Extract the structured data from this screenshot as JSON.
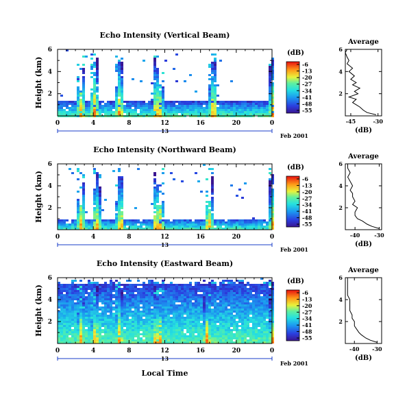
{
  "common": {
    "ylabel": "Height (km)",
    "time_ticks": [
      "0",
      "4",
      "8",
      "12",
      "16",
      "20",
      "0"
    ],
    "date_tick": "13",
    "date_label": "Feb 2001",
    "xlabel": "Local Time",
    "colorbar_unit": "(dB)",
    "colorbar_ticks": [
      "-6",
      "-13",
      "-20",
      "-27",
      "-34",
      "-41",
      "-48",
      "-55"
    ],
    "avg_title": "Average",
    "avg_xlabel": "(dB)"
  },
  "chart_data": [
    {
      "type": "heatmap",
      "title": "Echo Intensity (Vertical Beam)",
      "ylabel": "Height (km)",
      "x_range_hours": [
        0,
        24
      ],
      "ylim_km": [
        0,
        6
      ],
      "y_ticks": [
        "2",
        "4",
        "6"
      ],
      "clim_dB": [
        -55,
        -6
      ],
      "approx_echo_top_km": 1.4,
      "convective_plumes_hours": [
        2.5,
        4.0,
        6.8,
        10.9,
        11.2,
        17.3,
        24.0
      ],
      "average_profile": {
        "xlim_dB": [
          -48,
          -28
        ],
        "x_ticks": [
          "-45",
          "-30"
        ],
        "y_ticks": [
          "2",
          "4",
          "6"
        ],
        "height_km": [
          0.1,
          0.3,
          0.5,
          0.8,
          1.0,
          1.2,
          1.5,
          1.7,
          2.0,
          2.2,
          2.5,
          2.8,
          3.0,
          3.3,
          3.6,
          4.0,
          4.3,
          4.7,
          5.0,
          5.3,
          5.7,
          6.0
        ],
        "value_dB": [
          -31,
          -36,
          -38,
          -40,
          -42,
          -44,
          -42,
          -46,
          -41,
          -43,
          -40,
          -44,
          -42,
          -45,
          -43,
          -46,
          -44,
          -47,
          -46,
          -47,
          -48,
          -47
        ]
      }
    },
    {
      "type": "heatmap",
      "title": "Echo Intensity (Northward Beam)",
      "ylabel": "Height (km)",
      "x_range_hours": [
        0,
        24
      ],
      "ylim_km": [
        0,
        6
      ],
      "y_ticks": [
        "2",
        "4",
        "6"
      ],
      "clim_dB": [
        -55,
        -6
      ],
      "approx_echo_top_km": 1.1,
      "convective_plumes_hours": [
        2.5,
        4.2,
        6.9,
        10.9,
        11.3,
        16.8,
        24.0
      ],
      "average_profile": {
        "xlim_dB": [
          -44,
          -29
        ],
        "x_ticks": [
          "-40",
          "-30"
        ],
        "y_ticks": [
          "2",
          "4",
          "6"
        ],
        "height_km": [
          0.1,
          0.3,
          0.5,
          0.8,
          1.0,
          1.3,
          1.6,
          2.0,
          2.3,
          2.6,
          3.0,
          3.3,
          3.6,
          4.0,
          4.4,
          4.8,
          5.2,
          5.6,
          6.0
        ],
        "value_dB": [
          -30,
          -33,
          -35,
          -37,
          -39,
          -40,
          -40,
          -39,
          -41,
          -40,
          -41,
          -41,
          -42,
          -41,
          -42,
          -43,
          -42,
          -43,
          -43
        ]
      }
    },
    {
      "type": "heatmap",
      "title": "Echo Intensity (Eastward Beam)",
      "ylabel": "Height (km)",
      "x_range_hours": [
        0,
        24
      ],
      "ylim_km": [
        0,
        6
      ],
      "y_ticks": [
        "2",
        "4",
        "6"
      ],
      "clim_dB": [
        -55,
        -6
      ],
      "approx_echo_top_km": 5.6,
      "convective_plumes_hours": [
        2.5,
        4.1,
        6.8,
        10.9,
        11.3,
        16.6,
        24.0
      ],
      "average_profile": {
        "xlim_dB": [
          -44,
          -28
        ],
        "x_ticks": [
          "-40",
          "-30"
        ],
        "y_ticks": [
          "2",
          "4",
          "6"
        ],
        "height_km": [
          0.1,
          0.3,
          0.5,
          0.8,
          1.0,
          1.3,
          1.6,
          2.0,
          2.3,
          2.6,
          3.0,
          3.3,
          3.6,
          4.0,
          4.4,
          4.8,
          5.2,
          5.6,
          6.0
        ],
        "value_dB": [
          -30,
          -33,
          -35,
          -37,
          -38,
          -39,
          -40,
          -40,
          -41,
          -41,
          -42,
          -42,
          -42,
          -42,
          -43,
          -43,
          -43,
          -43,
          -43
        ]
      }
    }
  ]
}
